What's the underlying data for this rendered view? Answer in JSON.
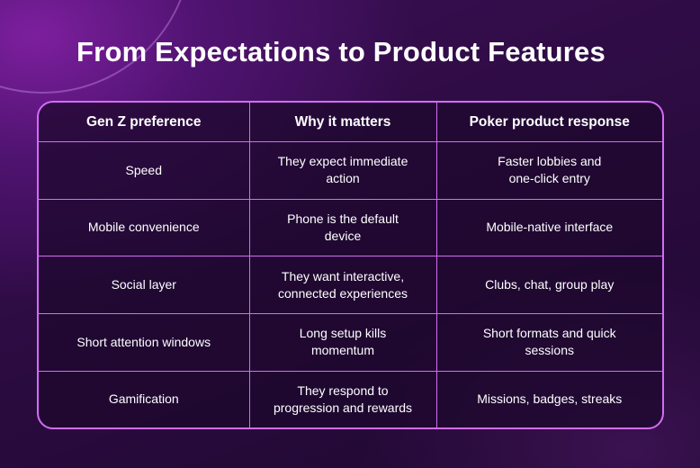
{
  "title": "From Expectations to Product Features",
  "table": {
    "headers": [
      "Gen Z preference",
      "Why it matters",
      "Poker product response"
    ],
    "rows": [
      [
        "Speed",
        "They expect immediate\naction",
        "Faster lobbies and\none-click entry"
      ],
      [
        "Mobile convenience",
        "Phone is the default\ndevice",
        "Mobile-native interface"
      ],
      [
        "Social layer",
        "They want interactive,\nconnected experiences",
        "Clubs, chat, group play"
      ],
      [
        "Short attention windows",
        "Long setup kills\nmomentum",
        "Short formats and quick\nsessions"
      ],
      [
        "Gamification",
        "They respond to\nprogression and rewards",
        "Missions, badges, streaks"
      ]
    ]
  }
}
